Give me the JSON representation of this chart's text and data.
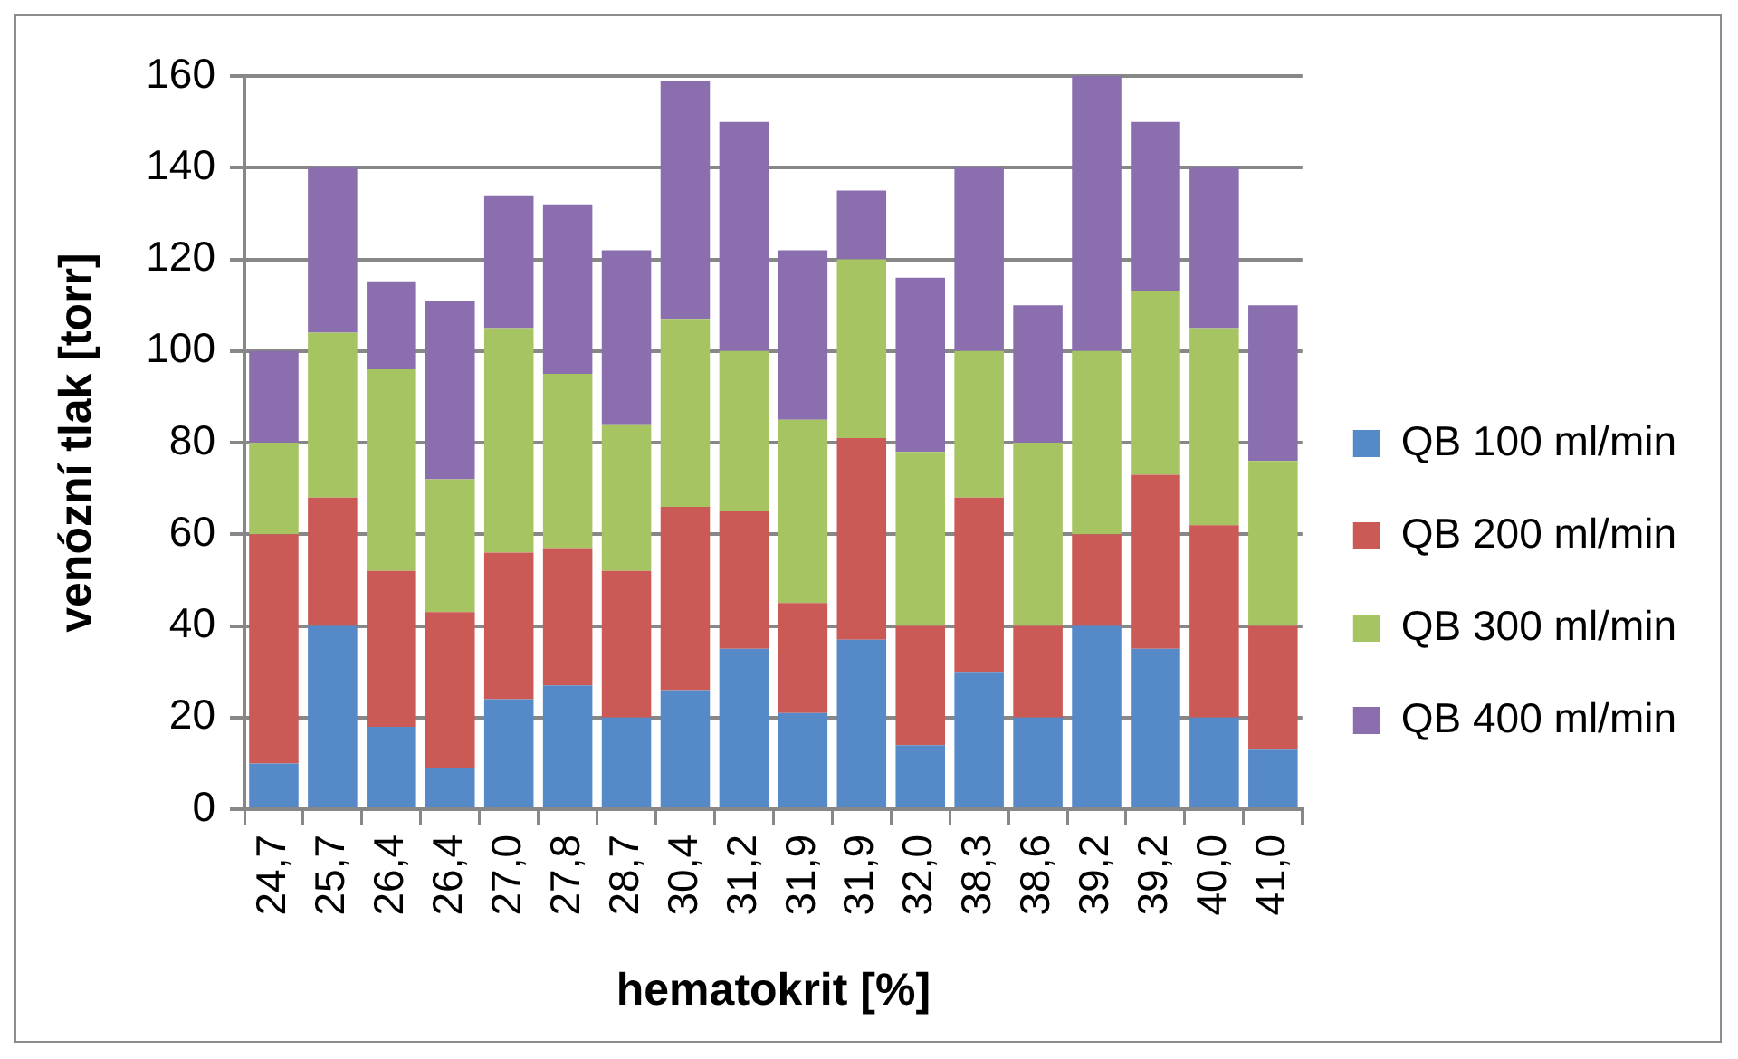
{
  "chart_data": {
    "type": "bar",
    "stacked": true,
    "xlabel": "hematokrit [%]",
    "ylabel": "venózní tlak [torr]",
    "categories": [
      "24,7",
      "25,7",
      "26,4",
      "26,4",
      "27,0",
      "27,8",
      "28,7",
      "30,4",
      "31,2",
      "31,9",
      "31,9",
      "32,0",
      "38,3",
      "38,6",
      "39,2",
      "39,2",
      "40,0",
      "41,0"
    ],
    "series": [
      {
        "name": "QB 100 ml/min",
        "color": "#5689c7",
        "values": [
          10,
          40,
          18,
          9,
          24,
          27,
          20,
          26,
          35,
          21,
          37,
          14,
          30,
          20,
          40,
          35,
          20,
          13
        ]
      },
      {
        "name": "QB 200 ml/min",
        "color": "#cb5955",
        "values": [
          50,
          28,
          34,
          34,
          32,
          30,
          32,
          40,
          30,
          24,
          44,
          26,
          38,
          20,
          20,
          38,
          42,
          27
        ]
      },
      {
        "name": "QB 300 ml/min",
        "color": "#a6c462",
        "values": [
          20,
          36,
          44,
          29,
          49,
          38,
          32,
          41,
          35,
          40,
          39,
          38,
          32,
          40,
          40,
          40,
          43,
          36
        ]
      },
      {
        "name": "QB 400 ml/min",
        "color": "#8a6eae",
        "values": [
          20,
          36,
          19,
          39,
          29,
          37,
          38,
          52,
          50,
          37,
          15,
          38,
          40,
          30,
          60,
          37,
          35,
          34
        ]
      }
    ],
    "ylim": [
      0,
      160
    ],
    "yticks": [
      0,
      20,
      40,
      60,
      80,
      100,
      120,
      140,
      160
    ],
    "grid": "y",
    "legend": "right"
  }
}
